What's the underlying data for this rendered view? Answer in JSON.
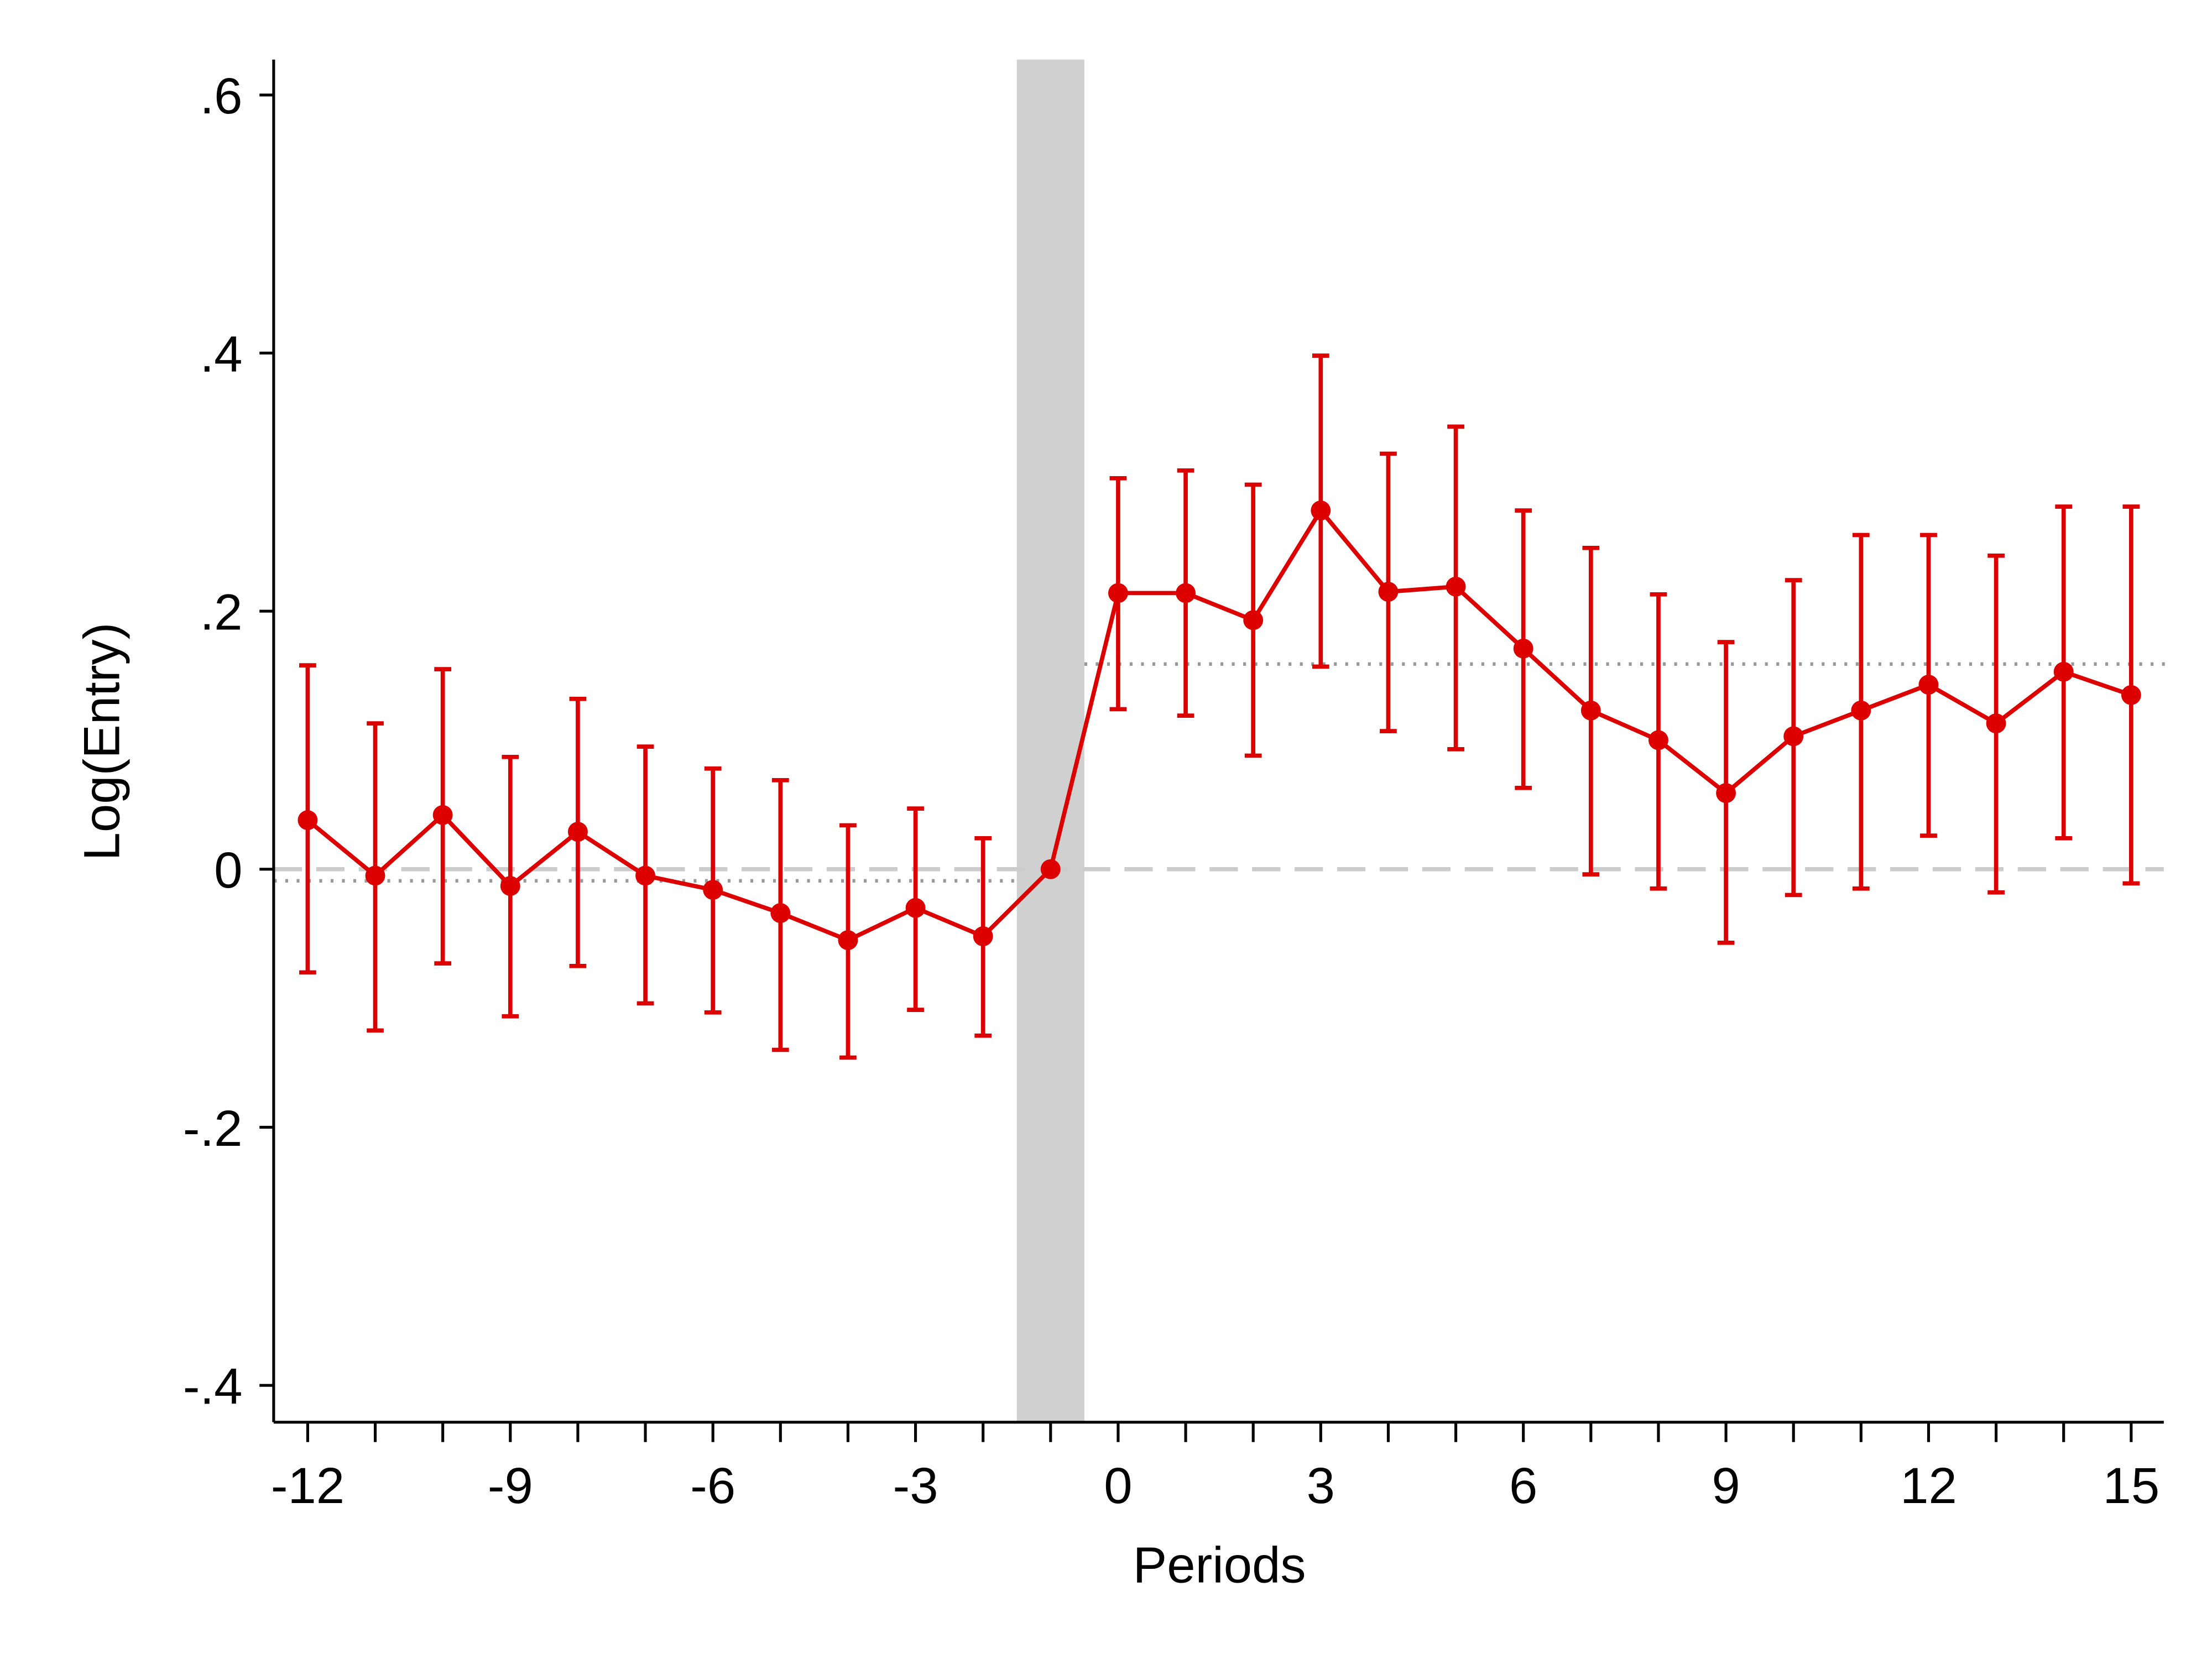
{
  "chart_data": {
    "type": "line",
    "title": "",
    "xlabel": "Periods",
    "ylabel": "Log(Entry)",
    "xlim": [
      -12.5,
      15.5
    ],
    "ylim": [
      -0.43,
      0.63
    ],
    "xticks": [
      -12,
      -9,
      -6,
      -3,
      0,
      3,
      6,
      9,
      12,
      15
    ],
    "xtick_labels": [
      "-12",
      "-9",
      "-6",
      "-3",
      "0",
      "3",
      "6",
      "9",
      "12",
      "15"
    ],
    "yticks": [
      -0.4,
      -0.2,
      0,
      0.2,
      0.4,
      0.6
    ],
    "ytick_labels": [
      "-.4",
      "-.2",
      "0",
      ".2",
      ".4",
      ".6"
    ],
    "grid": false,
    "legend": "none",
    "series_color": "#dd0000",
    "shade_color": "#d0d0d0",
    "mean_line_color": "#999999",
    "zero_line_color": "#cccccc",
    "shaded_region": [
      -1.5,
      -0.5
    ],
    "pre_mean": {
      "value": -0.009,
      "x_range": [
        -12.5,
        -1.5
      ]
    },
    "post_mean": {
      "value": 0.159,
      "x_range": [
        -0.5,
        15.5
      ]
    },
    "series": [
      {
        "name": "Coefficient",
        "x": [
          -12,
          -11,
          -10,
          -9,
          -8,
          -7,
          -6,
          -5,
          -4,
          -3,
          -2,
          -1,
          0,
          1,
          2,
          3,
          4,
          5,
          6,
          7,
          8,
          9,
          10,
          11,
          12,
          13,
          14,
          15
        ],
        "values": [
          0.038,
          -0.005,
          0.042,
          -0.013,
          0.029,
          -0.005,
          -0.016,
          -0.034,
          -0.055,
          -0.03,
          -0.052,
          0,
          0.214,
          0.214,
          0.193,
          0.278,
          0.215,
          0.219,
          0.171,
          0.123,
          0.1,
          0.059,
          0.103,
          0.123,
          0.143,
          0.113,
          0.153,
          0.135
        ],
        "ci_upper": [
          0.158,
          0.113,
          0.155,
          0.087,
          0.132,
          0.095,
          0.078,
          0.069,
          0.034,
          0.047,
          0.024,
          null,
          0.303,
          0.309,
          0.298,
          0.398,
          0.322,
          0.343,
          0.278,
          0.249,
          0.213,
          0.176,
          0.224,
          0.259,
          0.259,
          0.243,
          0.281,
          0.281
        ],
        "ci_lower": [
          -0.08,
          -0.125,
          -0.073,
          -0.114,
          -0.075,
          -0.104,
          -0.111,
          -0.14,
          -0.146,
          -0.109,
          -0.129,
          null,
          0.124,
          0.119,
          0.088,
          0.157,
          0.107,
          0.093,
          0.063,
          -0.004,
          -0.015,
          -0.057,
          -0.02,
          -0.015,
          0.026,
          -0.018,
          0.024,
          -0.011
        ]
      }
    ]
  }
}
